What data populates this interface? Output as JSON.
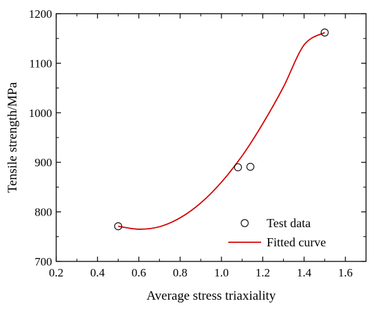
{
  "chart_data": {
    "type": "scatter",
    "xlabel": "Average stress triaxiality",
    "ylabel": "Tensile strength/MPa",
    "xlim": [
      0.2,
      1.7
    ],
    "ylim": [
      700,
      1200
    ],
    "x_ticks": [
      "0.2",
      "0.4",
      "0.6",
      "0.8",
      "1.0",
      "1.2",
      "1.4",
      "1.6"
    ],
    "y_ticks": [
      "700",
      "800",
      "900",
      "1000",
      "1100",
      "1200"
    ],
    "grid": false,
    "legend_position": "bottom-right",
    "series": [
      {
        "name": "Test data",
        "kind": "scatter",
        "marker": "open-circle",
        "color": "#000000",
        "x": [
          0.5,
          1.08,
          1.14,
          1.5
        ],
        "y": [
          771,
          890,
          891,
          1162
        ]
      },
      {
        "name": "Fitted curve",
        "kind": "line",
        "color": "#d40000",
        "x": [
          0.5,
          0.6,
          0.7,
          0.8,
          0.9,
          1.0,
          1.1,
          1.2,
          1.3,
          1.4,
          1.5
        ],
        "y": [
          771,
          765,
          770,
          788,
          818,
          860,
          913,
          978,
          1052,
          1137,
          1162
        ]
      }
    ]
  }
}
